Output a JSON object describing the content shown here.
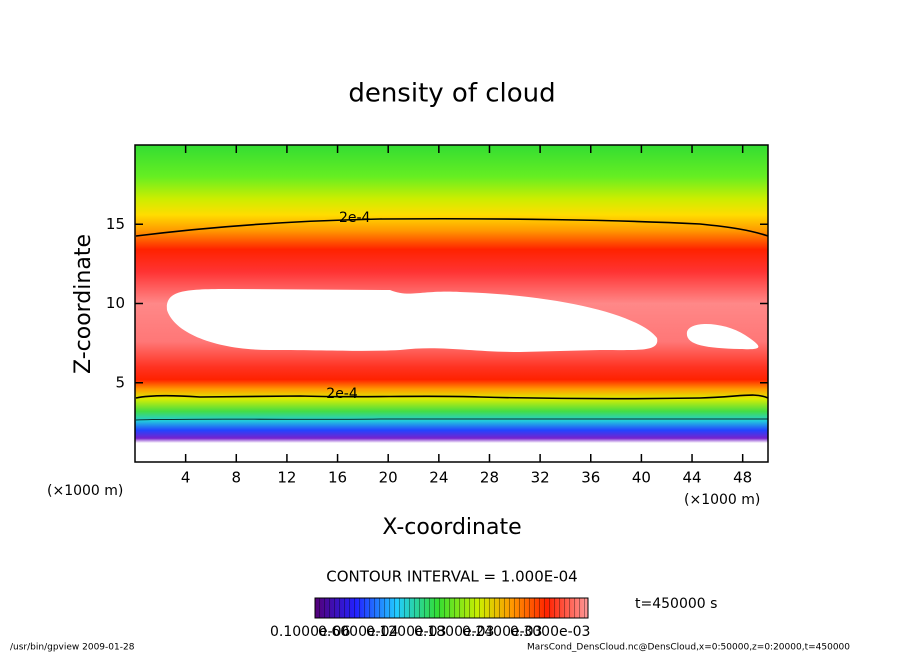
{
  "chart_data": {
    "type": "contour",
    "title": "density of cloud",
    "x_label": "X-coordinate",
    "y_label": "Z-coordinate",
    "x_unit": "(×1000 m)",
    "y_unit": "(×1000 m)",
    "xlim": [
      0,
      50
    ],
    "ylim": [
      0,
      20
    ],
    "xticks": [
      4,
      8,
      12,
      16,
      20,
      24,
      28,
      32,
      36,
      40,
      44,
      48
    ],
    "yticks": [
      5,
      10,
      15
    ],
    "contour_labels": [
      "2e-4",
      "2e-4"
    ],
    "contour_interval": "CONTOUR INTERVAL = 1.000E-04",
    "time": "t=450000 s",
    "colorbar_ticks": [
      "0.1000e-06",
      "0.6000e-04",
      "0.1200e-03",
      "0.1800e-03",
      "0.2400e-03",
      "0.3000e-03"
    ],
    "footer_left": "/usr/bin/gpview   2009-01-28",
    "footer_right": "MarsCond_DensCloud.nc@DensCloud,x=0:50000,z=0:20000,t=450000"
  }
}
